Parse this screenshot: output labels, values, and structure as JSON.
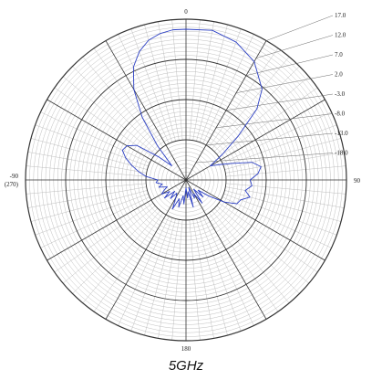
{
  "caption": "5GHz",
  "chart_data": {
    "type": "polar-line",
    "title": "",
    "angle_labels": [
      {
        "angle": 0,
        "text": "0"
      },
      {
        "angle": 90,
        "text": "90"
      },
      {
        "angle": 180,
        "text": "180"
      },
      {
        "angle": 270,
        "text": "-90"
      },
      {
        "angle": 270,
        "text": "(270)"
      }
    ],
    "radial_ticks": [
      "17.0",
      "12.0",
      "7.0",
      "2.0",
      "-3.0",
      "-8.0",
      "-13.0",
      "-18.0"
    ],
    "radial_range": [
      -23,
      17
    ],
    "major_rings": [
      -13,
      -3,
      7,
      17
    ],
    "grid": true,
    "colors": {
      "trace": "#2b3fc4",
      "grid_minor": "#b8b8b8",
      "grid_major": "#333333"
    },
    "series": [
      {
        "name": "",
        "points": [
          [
            0,
            14.5
          ],
          [
            10,
            14.8
          ],
          [
            20,
            13.5
          ],
          [
            30,
            11.0
          ],
          [
            40,
            6.5
          ],
          [
            45,
            2.0
          ],
          [
            50,
            -6.0
          ],
          [
            55,
            -12.0
          ],
          [
            60,
            -16.0
          ],
          [
            65,
            -14.0
          ],
          [
            70,
            -11.0
          ],
          [
            75,
            -6.0
          ],
          [
            80,
            -4.0
          ],
          [
            85,
            -5.0
          ],
          [
            90,
            -7.0
          ],
          [
            95,
            -6.5
          ],
          [
            100,
            -8.0
          ],
          [
            105,
            -6.5
          ],
          [
            110,
            -8.5
          ],
          [
            115,
            -9.0
          ],
          [
            120,
            -12.0
          ],
          [
            125,
            -16.0
          ],
          [
            130,
            -19.0
          ],
          [
            135,
            -17.0
          ],
          [
            140,
            -20.0
          ],
          [
            145,
            -16.0
          ],
          [
            150,
            -19.0
          ],
          [
            155,
            -18.0
          ],
          [
            160,
            -21.0
          ],
          [
            165,
            -16.0
          ],
          [
            170,
            -20.0
          ],
          [
            175,
            -18.5
          ],
          [
            180,
            -21.0
          ],
          [
            185,
            -17.0
          ],
          [
            190,
            -19.0
          ],
          [
            195,
            -16.0
          ],
          [
            200,
            -18.0
          ],
          [
            205,
            -15.0
          ],
          [
            210,
            -18.0
          ],
          [
            215,
            -19.0
          ],
          [
            220,
            -17.0
          ],
          [
            225,
            -19.0
          ],
          [
            230,
            -16.0
          ],
          [
            235,
            -18.0
          ],
          [
            240,
            -16.0
          ],
          [
            245,
            -17.0
          ],
          [
            250,
            -18.0
          ],
          [
            255,
            -16.0
          ],
          [
            260,
            -17.0
          ],
          [
            265,
            -15.5
          ],
          [
            270,
            -16.0
          ],
          [
            275,
            -13.0
          ],
          [
            280,
            -11.0
          ],
          [
            285,
            -9.0
          ],
          [
            290,
            -7.0
          ],
          [
            295,
            -5.5
          ],
          [
            300,
            -6.0
          ],
          [
            305,
            -8.0
          ],
          [
            310,
            -14.0
          ],
          [
            315,
            -18.0
          ],
          [
            320,
            -12.0
          ],
          [
            325,
            -4.0
          ],
          [
            330,
            3.0
          ],
          [
            335,
            8.0
          ],
          [
            340,
            11.0
          ],
          [
            345,
            13.0
          ],
          [
            350,
            14.0
          ],
          [
            355,
            14.5
          ],
          [
            360,
            14.5
          ]
        ]
      }
    ]
  }
}
